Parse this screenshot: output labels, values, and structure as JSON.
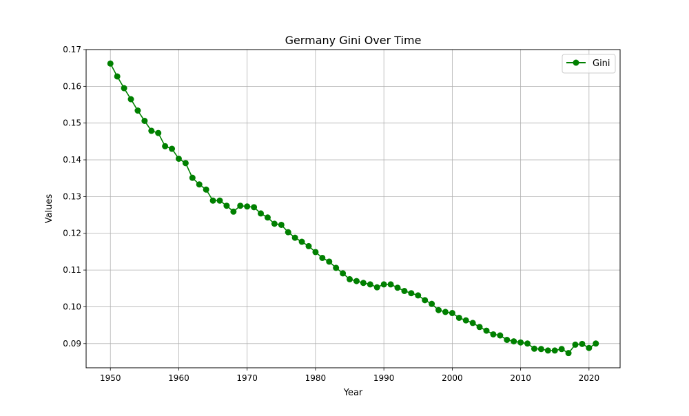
{
  "chart_data": {
    "type": "line",
    "title": "Germany Gini Over Time",
    "xlabel": "Year",
    "ylabel": "Values",
    "xlim": [
      1946.45,
      2024.55
    ],
    "ylim": [
      0.0834,
      0.17
    ],
    "xticks": [
      1950,
      1960,
      1970,
      1980,
      1990,
      2000,
      2010,
      2020
    ],
    "xtick_labels": [
      "1950",
      "1960",
      "1970",
      "1980",
      "1990",
      "2000",
      "2010",
      "2020"
    ],
    "yticks": [
      0.09,
      0.1,
      0.11,
      0.12,
      0.13,
      0.14,
      0.15,
      0.16,
      0.17
    ],
    "ytick_labels": [
      "0.09",
      "0.10",
      "0.11",
      "0.12",
      "0.13",
      "0.14",
      "0.15",
      "0.16",
      "0.17"
    ],
    "grid": true,
    "legend_position": "top-right",
    "series": [
      {
        "name": "Gini",
        "color": "#008000",
        "marker": "circle",
        "x": [
          1950,
          1951,
          1952,
          1953,
          1954,
          1955,
          1956,
          1957,
          1958,
          1959,
          1960,
          1961,
          1962,
          1963,
          1964,
          1965,
          1966,
          1967,
          1968,
          1969,
          1970,
          1971,
          1972,
          1973,
          1974,
          1975,
          1976,
          1977,
          1978,
          1979,
          1980,
          1981,
          1982,
          1983,
          1984,
          1985,
          1986,
          1987,
          1988,
          1989,
          1990,
          1991,
          1992,
          1993,
          1994,
          1995,
          1996,
          1997,
          1998,
          1999,
          2000,
          2001,
          2002,
          2003,
          2004,
          2005,
          2006,
          2007,
          2008,
          2009,
          2010,
          2011,
          2012,
          2013,
          2014,
          2015,
          2016,
          2017,
          2018,
          2019,
          2020,
          2021
        ],
        "values": [
          0.1662,
          0.1627,
          0.1595,
          0.1565,
          0.1534,
          0.1506,
          0.1479,
          0.1473,
          0.1437,
          0.143,
          0.1403,
          0.1391,
          0.1351,
          0.1333,
          0.1319,
          0.1289,
          0.1289,
          0.1275,
          0.1259,
          0.1275,
          0.1273,
          0.1271,
          0.1254,
          0.1243,
          0.1226,
          0.1223,
          0.1203,
          0.1188,
          0.1177,
          0.1165,
          0.1149,
          0.1133,
          0.1123,
          0.1106,
          0.1091,
          0.1075,
          0.107,
          0.1065,
          0.1061,
          0.1053,
          0.1061,
          0.1061,
          0.1052,
          0.1043,
          0.1037,
          0.1031,
          0.1018,
          0.1008,
          0.0991,
          0.0986,
          0.0983,
          0.097,
          0.0963,
          0.0956,
          0.0945,
          0.0935,
          0.0925,
          0.0922,
          0.091,
          0.0906,
          0.0903,
          0.09,
          0.0886,
          0.0885,
          0.0881,
          0.0881,
          0.0885,
          0.0874,
          0.0897,
          0.0899,
          0.0888,
          0.09
        ]
      }
    ]
  }
}
